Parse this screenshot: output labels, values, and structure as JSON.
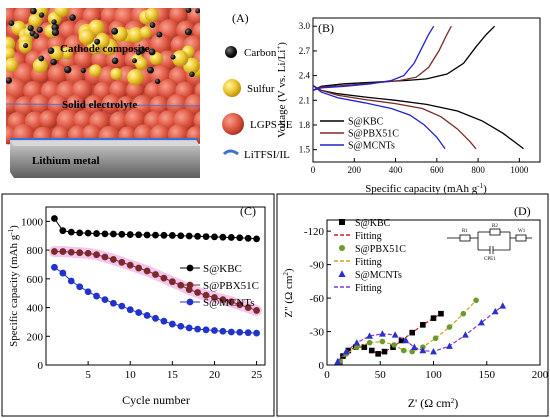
{
  "panels": {
    "A": {
      "label": "(A)",
      "composite_label": "Cathode composite",
      "electrolyte_label": "Solid electrolyte",
      "lithium_label": "Lithium metal",
      "legend": [
        {
          "name": "Carbon",
          "color": "#111111",
          "icon": "black-sphere"
        },
        {
          "name": "Sulfur",
          "color": "#e8c52a",
          "icon": "yellow-sphere"
        },
        {
          "name": "LGPS SE",
          "color": "#e05a45",
          "icon": "red-sphere"
        },
        {
          "name": "LiTFSI/IL",
          "color": "#3b6fd0",
          "icon": "blue-film"
        }
      ]
    },
    "B": {
      "label": "(B)"
    },
    "C": {
      "label": "(C)"
    },
    "D": {
      "label": "(D)",
      "circuit": [
        "R1",
        "R2",
        "CPE1",
        "W1"
      ]
    }
  },
  "chart_data": [
    {
      "panel": "B",
      "type": "line",
      "xlabel": "Specific capacity (mAh g",
      "xlabel_sup": "-1",
      "xlabel_end": ")",
      "ylabel": "Voltage (V vs. Li/Li",
      "ylabel_sup": "+",
      "ylabel_end": ")",
      "xlim": [
        0,
        1100
      ],
      "ylim": [
        1.35,
        3.1
      ],
      "xticks": [
        0,
        200,
        400,
        600,
        800,
        1000
      ],
      "yticks": [
        1.5,
        1.8,
        2.1,
        2.4,
        2.7,
        3.0
      ],
      "yticklabels": [
        "1.5",
        "1.8",
        "2.1",
        "2.4",
        "2.7",
        "3.0"
      ],
      "legend_position": "bottom-left",
      "series": [
        {
          "name": "S@KBC",
          "color": "#000000",
          "discharge": [
            [
              0,
              2.28
            ],
            [
              40,
              2.22
            ],
            [
              120,
              2.18
            ],
            [
              250,
              2.14
            ],
            [
              400,
              2.1
            ],
            [
              550,
              2.05
            ],
            [
              700,
              1.97
            ],
            [
              820,
              1.85
            ],
            [
              920,
              1.7
            ],
            [
              1000,
              1.55
            ],
            [
              1020,
              1.51
            ]
          ],
          "charge": [
            [
              0,
              2.22
            ],
            [
              40,
              2.27
            ],
            [
              150,
              2.3
            ],
            [
              300,
              2.32
            ],
            [
              450,
              2.34
            ],
            [
              550,
              2.36
            ],
            [
              650,
              2.42
            ],
            [
              730,
              2.55
            ],
            [
              790,
              2.75
            ],
            [
              840,
              2.9
            ],
            [
              880,
              3.0
            ]
          ]
        },
        {
          "name": "S@PBX51C",
          "color": "#7a2a2a",
          "discharge": [
            [
              0,
              2.28
            ],
            [
              40,
              2.22
            ],
            [
              120,
              2.16
            ],
            [
              250,
              2.11
            ],
            [
              400,
              2.06
            ],
            [
              530,
              2.0
            ],
            [
              620,
              1.9
            ],
            [
              700,
              1.75
            ],
            [
              760,
              1.6
            ],
            [
              790,
              1.51
            ]
          ],
          "charge": [
            [
              0,
              2.22
            ],
            [
              40,
              2.26
            ],
            [
              150,
              2.28
            ],
            [
              300,
              2.31
            ],
            [
              420,
              2.34
            ],
            [
              500,
              2.38
            ],
            [
              560,
              2.5
            ],
            [
              610,
              2.7
            ],
            [
              645,
              2.88
            ],
            [
              670,
              3.0
            ]
          ]
        },
        {
          "name": "S@MCNTs",
          "color": "#2222cc",
          "discharge": [
            [
              0,
              2.28
            ],
            [
              40,
              2.2
            ],
            [
              120,
              2.13
            ],
            [
              250,
              2.07
            ],
            [
              380,
              2.0
            ],
            [
              470,
              1.92
            ],
            [
              540,
              1.8
            ],
            [
              600,
              1.65
            ],
            [
              640,
              1.51
            ]
          ],
          "charge": [
            [
              0,
              2.22
            ],
            [
              40,
              2.25
            ],
            [
              150,
              2.27
            ],
            [
              280,
              2.3
            ],
            [
              380,
              2.34
            ],
            [
              440,
              2.4
            ],
            [
              490,
              2.55
            ],
            [
              530,
              2.75
            ],
            [
              560,
              2.9
            ],
            [
              585,
              3.0
            ]
          ]
        }
      ]
    },
    {
      "panel": "C",
      "type": "scatter",
      "xlabel": "Cycle number",
      "ylabel": "Specific capacity (mAh g",
      "ylabel_sup": "-1",
      "ylabel_end": ")",
      "xlim": [
        0,
        26
      ],
      "ylim": [
        0,
        1100
      ],
      "xticks": [
        5,
        10,
        15,
        20,
        25
      ],
      "yticks": [
        0,
        200,
        400,
        600,
        800,
        1000
      ],
      "legend_position": "right",
      "x": [
        1,
        2,
        3,
        4,
        5,
        6,
        7,
        8,
        9,
        10,
        11,
        12,
        13,
        14,
        15,
        16,
        17,
        18,
        19,
        20,
        21,
        22,
        23,
        24,
        25
      ],
      "series": [
        {
          "name": "S@KBC",
          "color": "#000000",
          "values": [
            1020,
            935,
            925,
            920,
            918,
            915,
            913,
            912,
            910,
            908,
            907,
            905,
            904,
            903,
            902,
            900,
            898,
            896,
            894,
            892,
            890,
            888,
            886,
            882,
            878
          ]
        },
        {
          "name": "S@PBX51C",
          "color": "#7a2a2a",
          "values": [
            790,
            790,
            785,
            782,
            778,
            768,
            752,
            735,
            715,
            695,
            675,
            655,
            630,
            605,
            580,
            555,
            525,
            505,
            485,
            470,
            455,
            440,
            420,
            400,
            380
          ]
        },
        {
          "name": "S@MCNTs",
          "color": "#2233cc",
          "values": [
            680,
            640,
            585,
            545,
            510,
            480,
            455,
            430,
            410,
            385,
            365,
            345,
            325,
            305,
            285,
            270,
            258,
            250,
            245,
            240,
            235,
            230,
            228,
            225,
            222
          ]
        }
      ]
    },
    {
      "panel": "D",
      "type": "scatter",
      "xlabel": "Z' (Ω cm",
      "xlabel_sup": "2",
      "xlabel_end": ")",
      "ylabel": "Z\" (Ω cm",
      "ylabel_sup": "2",
      "ylabel_end": ")",
      "xlim": [
        0,
        200
      ],
      "ylim": [
        0,
        -130
      ],
      "xticks": [
        0,
        50,
        100,
        150,
        200
      ],
      "yticks": [
        0,
        -30,
        -60,
        -90,
        -120
      ],
      "legend_position": "top-left",
      "legend": [
        {
          "name": "S@KBC",
          "marker": "square",
          "color": "#000000"
        },
        {
          "name": "Fitting",
          "marker": "line",
          "color": "#cc2222"
        },
        {
          "name": "S@PBX51C",
          "marker": "circle",
          "color": "#6a9a2a"
        },
        {
          "name": "Fitting",
          "marker": "line",
          "color": "#d4a020"
        },
        {
          "name": "S@MCNTs",
          "marker": "triangle",
          "color": "#2a30cc"
        },
        {
          "name": "Fitting",
          "marker": "line",
          "color": "#8a35c8"
        }
      ],
      "series": [
        {
          "name": "S@KBC",
          "color": "#000000",
          "marker": "square",
          "fit_color": "#cc2222",
          "points": [
            [
              12,
              -3
            ],
            [
              15,
              -8
            ],
            [
              20,
              -13
            ],
            [
              27,
              -16
            ],
            [
              35,
              -16
            ],
            [
              42,
              -13
            ],
            [
              48,
              -10
            ],
            [
              54,
              -12
            ],
            [
              62,
              -16
            ],
            [
              70,
              -22
            ],
            [
              80,
              -29
            ],
            [
              90,
              -36
            ],
            [
              100,
              -42
            ],
            [
              107,
              -46
            ]
          ]
        },
        {
          "name": "S@PBX51C",
          "color": "#6a9a2a",
          "marker": "circle",
          "fit_color": "#d4a020",
          "points": [
            [
              12,
              -3
            ],
            [
              18,
              -10
            ],
            [
              28,
              -16
            ],
            [
              40,
              -20
            ],
            [
              52,
              -21
            ],
            [
              63,
              -18
            ],
            [
              72,
              -13
            ],
            [
              80,
              -12
            ],
            [
              90,
              -16
            ],
            [
              102,
              -24
            ],
            [
              115,
              -34
            ],
            [
              128,
              -46
            ],
            [
              140,
              -58
            ]
          ]
        },
        {
          "name": "S@MCNTs",
          "color": "#2a30cc",
          "marker": "triangle",
          "fit_color": "#8a35c8",
          "points": [
            [
              10,
              -3
            ],
            [
              18,
              -12
            ],
            [
              28,
              -20
            ],
            [
              40,
              -26
            ],
            [
              52,
              -28
            ],
            [
              64,
              -27
            ],
            [
              74,
              -22
            ],
            [
              82,
              -16
            ],
            [
              90,
              -13
            ],
            [
              100,
              -12
            ],
            [
              115,
              -17
            ],
            [
              130,
              -27
            ],
            [
              145,
              -38
            ],
            [
              158,
              -48
            ],
            [
              165,
              -53
            ]
          ]
        }
      ]
    }
  ]
}
